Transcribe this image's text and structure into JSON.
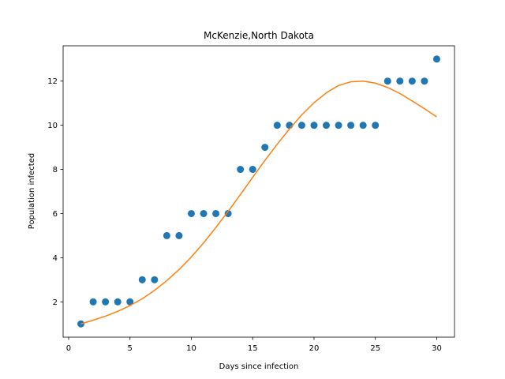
{
  "chart_data": {
    "type": "scatter",
    "title": "McKenzie,North Dakota",
    "xlabel": "Days since infection",
    "ylabel": "Population infected",
    "xlim": [
      -0.45,
      31.45
    ],
    "ylim": [
      0.4,
      13.6
    ],
    "xticks": [
      0,
      5,
      10,
      15,
      20,
      25,
      30
    ],
    "yticks": [
      2,
      4,
      6,
      8,
      10,
      12
    ],
    "grid": false,
    "legend": "none",
    "colors": {
      "scatter": "#1f77b4",
      "fit": "#ff7f0e"
    },
    "series": [
      {
        "type": "scatter",
        "x": [
          1,
          2,
          3,
          4,
          5,
          6,
          7,
          8,
          9,
          10,
          11,
          12,
          13,
          14,
          15,
          16,
          17,
          18,
          19,
          20,
          21,
          22,
          23,
          24,
          25,
          26,
          27,
          28,
          29,
          30
        ],
        "y": [
          1,
          2,
          2,
          2,
          2,
          3,
          3,
          5,
          5,
          6,
          6,
          6,
          6,
          8,
          8,
          9,
          10,
          10,
          10,
          10,
          10,
          10,
          10,
          10,
          10,
          12,
          12,
          12,
          12,
          13
        ]
      },
      {
        "type": "line",
        "x": [
          1,
          2,
          3,
          4,
          5,
          6,
          7,
          8,
          9,
          10,
          11,
          12,
          13,
          14,
          15,
          16,
          17,
          18,
          19,
          20,
          21,
          22,
          23,
          24,
          25,
          26,
          27,
          28,
          29,
          30
        ],
        "y": [
          1.0,
          1.17,
          1.35,
          1.57,
          1.83,
          2.14,
          2.52,
          2.96,
          3.46,
          4.03,
          4.67,
          5.37,
          6.1,
          6.86,
          7.64,
          8.41,
          9.14,
          9.83,
          10.47,
          11.02,
          11.47,
          11.8,
          11.97,
          12.0,
          11.91,
          11.71,
          11.44,
          11.1,
          10.75,
          10.38
        ]
      }
    ]
  }
}
